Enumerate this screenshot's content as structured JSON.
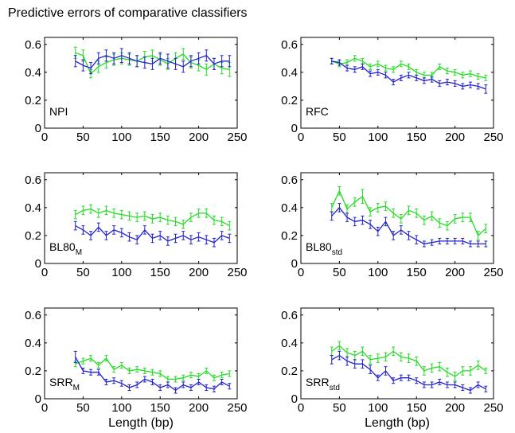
{
  "figure_title": "Predictive errors of comparative classifiers",
  "colors": {
    "series_green": "#22dd22",
    "series_blue": "#2222cc",
    "axis": "#000000"
  },
  "chart_data": [
    {
      "type": "line",
      "label": "NPI",
      "xlabel": "",
      "xlim": [
        0,
        250
      ],
      "ylim": [
        0,
        0.65
      ],
      "xticks": [
        0,
        50,
        100,
        150,
        200,
        250
      ],
      "yticks": [
        0,
        0.2,
        0.4,
        0.6
      ],
      "x": [
        40,
        50,
        60,
        70,
        80,
        90,
        100,
        110,
        120,
        130,
        140,
        150,
        160,
        170,
        180,
        190,
        200,
        210,
        220,
        230,
        240
      ],
      "series": [
        {
          "color": "green",
          "values": [
            0.54,
            0.52,
            0.39,
            0.44,
            0.47,
            0.49,
            0.5,
            0.49,
            0.48,
            0.51,
            0.52,
            0.49,
            0.46,
            0.5,
            0.53,
            0.47,
            0.45,
            0.42,
            0.46,
            0.43,
            0.42
          ],
          "errors": [
            0.04,
            0.04,
            0.03,
            0.04,
            0.04,
            0.04,
            0.04,
            0.04,
            0.04,
            0.04,
            0.04,
            0.04,
            0.04,
            0.04,
            0.04,
            0.04,
            0.04,
            0.04,
            0.04,
            0.04,
            0.05
          ]
        },
        {
          "color": "blue",
          "values": [
            0.48,
            0.45,
            0.43,
            0.5,
            0.52,
            0.5,
            0.52,
            0.5,
            0.48,
            0.47,
            0.46,
            0.5,
            0.48,
            0.46,
            0.44,
            0.48,
            0.5,
            0.52,
            0.46,
            0.48,
            0.48
          ],
          "errors": [
            0.04,
            0.04,
            0.04,
            0.04,
            0.04,
            0.04,
            0.05,
            0.04,
            0.04,
            0.04,
            0.04,
            0.04,
            0.05,
            0.04,
            0.04,
            0.04,
            0.04,
            0.04,
            0.04,
            0.04,
            0.04
          ]
        }
      ]
    },
    {
      "type": "line",
      "label": "RFC",
      "xlabel": "",
      "xlim": [
        0,
        250
      ],
      "ylim": [
        0,
        0.65
      ],
      "xticks": [
        0,
        50,
        100,
        150,
        200,
        250
      ],
      "yticks": [
        0,
        0.2,
        0.4,
        0.6
      ],
      "x": [
        40,
        50,
        60,
        70,
        80,
        90,
        100,
        110,
        120,
        130,
        140,
        150,
        160,
        170,
        180,
        190,
        200,
        210,
        220,
        230,
        240
      ],
      "series": [
        {
          "color": "green",
          "values": [
            0.48,
            0.46,
            0.47,
            0.5,
            0.48,
            0.44,
            0.46,
            0.43,
            0.42,
            0.46,
            0.44,
            0.4,
            0.38,
            0.38,
            0.44,
            0.41,
            0.4,
            0.38,
            0.39,
            0.37,
            0.36
          ],
          "errors": [
            0.02,
            0.02,
            0.02,
            0.02,
            0.02,
            0.02,
            0.02,
            0.02,
            0.02,
            0.02,
            0.02,
            0.02,
            0.02,
            0.02,
            0.02,
            0.02,
            0.02,
            0.02,
            0.02,
            0.02,
            0.02
          ]
        },
        {
          "color": "blue",
          "values": [
            0.48,
            0.47,
            0.43,
            0.42,
            0.44,
            0.39,
            0.4,
            0.38,
            0.33,
            0.36,
            0.38,
            0.36,
            0.34,
            0.35,
            0.32,
            0.33,
            0.32,
            0.3,
            0.31,
            0.3,
            0.28
          ],
          "errors": [
            0.02,
            0.02,
            0.02,
            0.02,
            0.02,
            0.02,
            0.02,
            0.02,
            0.02,
            0.02,
            0.02,
            0.02,
            0.02,
            0.02,
            0.02,
            0.02,
            0.02,
            0.02,
            0.02,
            0.02,
            0.03
          ]
        }
      ]
    },
    {
      "type": "line",
      "label": "BL80",
      "label_sub": "M",
      "xlabel": "",
      "xlim": [
        0,
        250
      ],
      "ylim": [
        0,
        0.65
      ],
      "xticks": [
        0,
        50,
        100,
        150,
        200,
        250
      ],
      "yticks": [
        0,
        0.2,
        0.4,
        0.6
      ],
      "x": [
        40,
        50,
        60,
        70,
        80,
        90,
        100,
        110,
        120,
        130,
        140,
        150,
        160,
        170,
        180,
        190,
        200,
        210,
        220,
        230,
        240
      ],
      "series": [
        {
          "color": "green",
          "values": [
            0.35,
            0.38,
            0.39,
            0.36,
            0.38,
            0.36,
            0.35,
            0.34,
            0.33,
            0.34,
            0.32,
            0.33,
            0.31,
            0.3,
            0.28,
            0.33,
            0.36,
            0.36,
            0.31,
            0.3,
            0.27
          ],
          "errors": [
            0.03,
            0.03,
            0.03,
            0.03,
            0.03,
            0.03,
            0.03,
            0.03,
            0.03,
            0.03,
            0.03,
            0.03,
            0.03,
            0.03,
            0.03,
            0.03,
            0.03,
            0.03,
            0.03,
            0.03,
            0.03
          ]
        },
        {
          "color": "blue",
          "values": [
            0.27,
            0.24,
            0.2,
            0.26,
            0.2,
            0.24,
            0.22,
            0.19,
            0.17,
            0.24,
            0.18,
            0.2,
            0.16,
            0.18,
            0.2,
            0.17,
            0.19,
            0.17,
            0.15,
            0.2,
            0.18
          ],
          "errors": [
            0.03,
            0.03,
            0.03,
            0.03,
            0.03,
            0.03,
            0.03,
            0.03,
            0.03,
            0.03,
            0.03,
            0.03,
            0.03,
            0.03,
            0.03,
            0.03,
            0.03,
            0.03,
            0.03,
            0.03,
            0.03
          ]
        }
      ]
    },
    {
      "type": "line",
      "label": "BL80",
      "label_sub": "std",
      "xlabel": "",
      "xlim": [
        0,
        250
      ],
      "ylim": [
        0,
        0.65
      ],
      "xticks": [
        0,
        50,
        100,
        150,
        200,
        250
      ],
      "yticks": [
        0,
        0.2,
        0.4,
        0.6
      ],
      "x": [
        40,
        50,
        60,
        70,
        80,
        90,
        100,
        110,
        120,
        130,
        140,
        150,
        160,
        170,
        180,
        190,
        200,
        210,
        220,
        230,
        240
      ],
      "series": [
        {
          "color": "green",
          "values": [
            0.4,
            0.52,
            0.39,
            0.44,
            0.48,
            0.37,
            0.4,
            0.41,
            0.36,
            0.32,
            0.38,
            0.36,
            0.31,
            0.34,
            0.29,
            0.27,
            0.32,
            0.33,
            0.33,
            0.2,
            0.25
          ],
          "errors": [
            0.03,
            0.03,
            0.03,
            0.03,
            0.05,
            0.03,
            0.03,
            0.03,
            0.03,
            0.03,
            0.03,
            0.03,
            0.03,
            0.03,
            0.03,
            0.03,
            0.03,
            0.03,
            0.03,
            0.03,
            0.03
          ]
        },
        {
          "color": "blue",
          "values": [
            0.34,
            0.4,
            0.33,
            0.3,
            0.31,
            0.28,
            0.23,
            0.3,
            0.2,
            0.24,
            0.2,
            0.17,
            0.14,
            0.15,
            0.16,
            0.16,
            0.16,
            0.16,
            0.14,
            0.14,
            0.14
          ],
          "errors": [
            0.03,
            0.03,
            0.03,
            0.03,
            0.03,
            0.03,
            0.03,
            0.03,
            0.03,
            0.03,
            0.03,
            0.03,
            0.02,
            0.02,
            0.02,
            0.02,
            0.02,
            0.02,
            0.02,
            0.02,
            0.02
          ]
        }
      ]
    },
    {
      "type": "line",
      "label": "SRR",
      "label_sub": "M",
      "xlabel": "Length (bp)",
      "xlim": [
        0,
        250
      ],
      "ylim": [
        0,
        0.65
      ],
      "xticks": [
        0,
        50,
        100,
        150,
        200,
        250
      ],
      "yticks": [
        0,
        0.2,
        0.4,
        0.6
      ],
      "x": [
        40,
        50,
        60,
        70,
        80,
        90,
        100,
        110,
        120,
        130,
        140,
        150,
        160,
        170,
        180,
        190,
        200,
        210,
        220,
        230,
        240
      ],
      "series": [
        {
          "color": "green",
          "values": [
            0.25,
            0.27,
            0.29,
            0.24,
            0.29,
            0.21,
            0.24,
            0.2,
            0.21,
            0.2,
            0.19,
            0.18,
            0.14,
            0.14,
            0.15,
            0.17,
            0.16,
            0.2,
            0.15,
            0.17,
            0.18
          ],
          "errors": [
            0.02,
            0.02,
            0.02,
            0.02,
            0.02,
            0.02,
            0.02,
            0.02,
            0.02,
            0.02,
            0.02,
            0.02,
            0.02,
            0.02,
            0.02,
            0.02,
            0.02,
            0.02,
            0.02,
            0.02,
            0.02
          ]
        },
        {
          "color": "blue",
          "values": [
            0.3,
            0.2,
            0.19,
            0.19,
            0.12,
            0.13,
            0.11,
            0.08,
            0.1,
            0.14,
            0.12,
            0.08,
            0.1,
            0.06,
            0.1,
            0.08,
            0.12,
            0.08,
            0.07,
            0.12,
            0.09
          ],
          "errors": [
            0.04,
            0.02,
            0.02,
            0.02,
            0.02,
            0.02,
            0.02,
            0.02,
            0.02,
            0.02,
            0.02,
            0.02,
            0.02,
            0.02,
            0.02,
            0.02,
            0.02,
            0.02,
            0.02,
            0.02,
            0.02
          ]
        }
      ]
    },
    {
      "type": "line",
      "label": "SRR",
      "label_sub": "std",
      "xlabel": "Length (bp)",
      "xlim": [
        0,
        250
      ],
      "ylim": [
        0,
        0.65
      ],
      "xticks": [
        0,
        50,
        100,
        150,
        200,
        250
      ],
      "yticks": [
        0,
        0.2,
        0.4,
        0.6
      ],
      "x": [
        40,
        50,
        60,
        70,
        80,
        90,
        100,
        110,
        120,
        130,
        140,
        150,
        160,
        170,
        180,
        190,
        200,
        210,
        220,
        230,
        240
      ],
      "series": [
        {
          "color": "green",
          "values": [
            0.34,
            0.38,
            0.33,
            0.31,
            0.34,
            0.28,
            0.29,
            0.3,
            0.34,
            0.3,
            0.29,
            0.27,
            0.2,
            0.22,
            0.23,
            0.19,
            0.16,
            0.2,
            0.2,
            0.24,
            0.2
          ],
          "errors": [
            0.03,
            0.03,
            0.03,
            0.03,
            0.03,
            0.03,
            0.03,
            0.03,
            0.03,
            0.03,
            0.03,
            0.03,
            0.03,
            0.03,
            0.03,
            0.03,
            0.03,
            0.03,
            0.03,
            0.03,
            0.02
          ]
        },
        {
          "color": "blue",
          "values": [
            0.28,
            0.31,
            0.27,
            0.25,
            0.25,
            0.21,
            0.15,
            0.2,
            0.13,
            0.15,
            0.15,
            0.13,
            0.1,
            0.1,
            0.12,
            0.1,
            0.1,
            0.08,
            0.06,
            0.1,
            0.07
          ],
          "errors": [
            0.03,
            0.03,
            0.03,
            0.03,
            0.03,
            0.03,
            0.02,
            0.03,
            0.02,
            0.02,
            0.02,
            0.02,
            0.02,
            0.02,
            0.02,
            0.02,
            0.02,
            0.02,
            0.02,
            0.02,
            0.02
          ]
        }
      ]
    }
  ]
}
